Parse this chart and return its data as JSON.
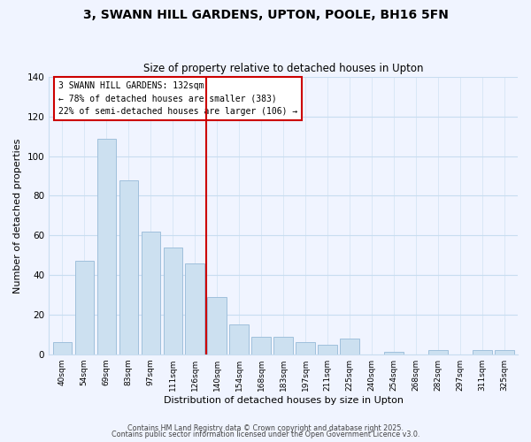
{
  "title_line1": "3, SWANN HILL GARDENS, UPTON, POOLE, BH16 5FN",
  "title_line2": "Size of property relative to detached houses in Upton",
  "xlabel": "Distribution of detached houses by size in Upton",
  "ylabel": "Number of detached properties",
  "categories": [
    "40sqm",
    "54sqm",
    "69sqm",
    "83sqm",
    "97sqm",
    "111sqm",
    "126sqm",
    "140sqm",
    "154sqm",
    "168sqm",
    "183sqm",
    "197sqm",
    "211sqm",
    "225sqm",
    "240sqm",
    "254sqm",
    "268sqm",
    "282sqm",
    "297sqm",
    "311sqm",
    "325sqm"
  ],
  "values": [
    6,
    47,
    109,
    88,
    62,
    54,
    46,
    29,
    15,
    9,
    9,
    6,
    5,
    8,
    0,
    1,
    0,
    2,
    0,
    2,
    2
  ],
  "bar_color": "#cce0f0",
  "bar_edge_color": "#a0c0dc",
  "vline_x": 6.5,
  "vline_color": "#cc0000",
  "annotation_title": "3 SWANN HILL GARDENS: 132sqm",
  "annotation_line2": "← 78% of detached houses are smaller (383)",
  "annotation_line3": "22% of semi-detached houses are larger (106) →",
  "annotation_box_color": "#ffffff",
  "annotation_box_edge": "#cc0000",
  "ylim": [
    0,
    140
  ],
  "yticks": [
    0,
    20,
    40,
    60,
    80,
    100,
    120,
    140
  ],
  "footer_line1": "Contains HM Land Registry data © Crown copyright and database right 2025.",
  "footer_line2": "Contains public sector information licensed under the Open Government Licence v3.0.",
  "bg_color": "#f0f4ff",
  "grid_color": "#c8ddf0"
}
